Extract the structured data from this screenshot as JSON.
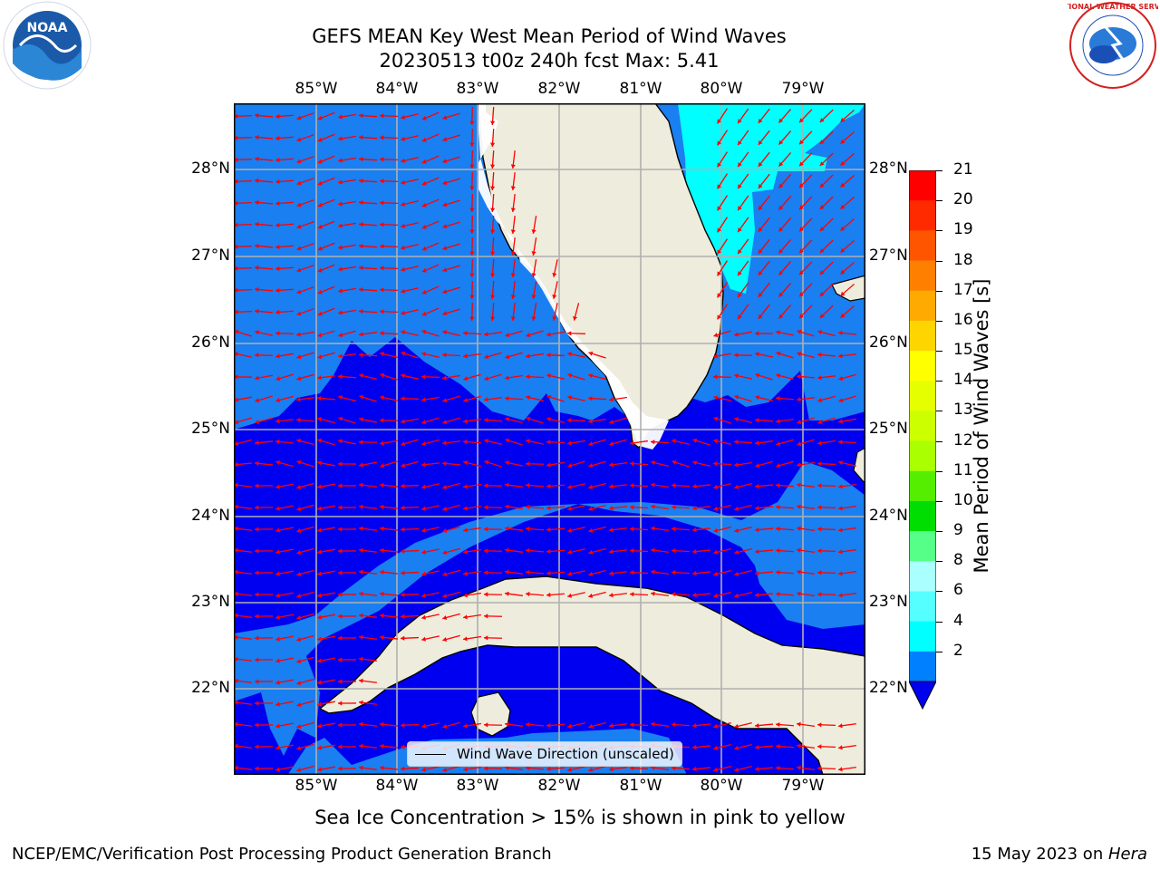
{
  "title": {
    "line1": "GEFS MEAN Key West Mean Period of Wind Waves",
    "line2": "20230513 t00z 240h fcst   Max: 5.41"
  },
  "map": {
    "lon_ticks": [
      "85°W",
      "84°W",
      "83°W",
      "82°W",
      "81°W",
      "80°W",
      "79°W"
    ],
    "lat_ticks": [
      "28°N",
      "27°N",
      "26°N",
      "25°N",
      "24°N",
      "23°N",
      "22°N"
    ],
    "grid": true,
    "colors": {
      "land": "#eeecdc",
      "bin_2_4": "#1a7ff0",
      "below_2": "#0000f0",
      "bin_4_6": "#00ffff",
      "arrow": "#ff0000"
    }
  },
  "legend": {
    "label": "Wind Wave Direction (unscaled)"
  },
  "colorbar": {
    "label": "Mean Period of Wind Waves [s]",
    "ticks": [
      "21",
      "20",
      "19",
      "18",
      "17",
      "16",
      "15",
      "14",
      "13",
      "12",
      "11",
      "10",
      "9",
      "8",
      "6",
      "4",
      "2"
    ],
    "colors": [
      "#ff0000",
      "#ff2a00",
      "#ff5500",
      "#ff8000",
      "#ffaa00",
      "#ffd500",
      "#ffff00",
      "#e6ff00",
      "#ccff00",
      "#aaff00",
      "#55ee00",
      "#00dd00",
      "#55ff88",
      "#aaffff",
      "#55ffff",
      "#00ffff",
      "#0080ff"
    ],
    "extend_below_color": "#0000f0"
  },
  "subtitle": "Sea Ice Concentration > 15% is shown in pink to yellow",
  "footer": {
    "left": "NCEP/EMC/Verification Post Processing Product Generation Branch",
    "right_prefix": "15 May 2023 on ",
    "right_italic": "Hera"
  },
  "logos": {
    "left": "noaa-logo",
    "right": "nws-logo",
    "left_text": "NOAA",
    "right_text": "NATIONAL WEATHER SERVICE"
  }
}
